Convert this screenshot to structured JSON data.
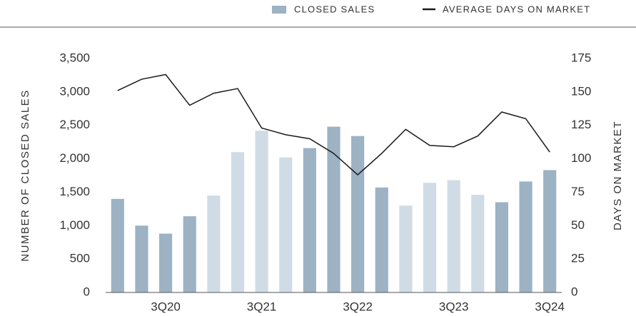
{
  "chart_data": {
    "type": "bar",
    "categories": [
      null,
      null,
      "3Q20",
      null,
      null,
      null,
      "3Q21",
      null,
      null,
      null,
      "3Q22",
      null,
      null,
      null,
      "3Q23",
      null,
      null,
      null,
      "3Q24"
    ],
    "series": [
      {
        "name": "CLOSED SALES",
        "color": "#9db2c3",
        "colors": [
          "#9db2c3",
          "#9db2c3",
          "#9db2c3",
          "#9db2c3",
          "#d0dce5",
          "#d0dce5",
          "#d0dce5",
          "#d0dce5",
          "#9db2c3",
          "#9db2c3",
          "#9db2c3",
          "#9db2c3",
          "#d0dce5",
          "#d0dce5",
          "#d0dce5",
          "#d0dce5",
          "#9db2c3",
          "#9db2c3",
          "#9db2c3"
        ],
        "values": [
          1400,
          1000,
          880,
          1140,
          1450,
          2100,
          2420,
          2020,
          2160,
          2480,
          2340,
          1570,
          1300,
          1640,
          1680,
          1460,
          1350,
          1660,
          1830
        ]
      },
      {
        "name": "AVERAGE DAYS ON MARKET",
        "color": "#1a1a1a",
        "type": "line",
        "axis": "y2",
        "values": [
          151,
          159.5,
          163,
          140,
          149,
          152.5,
          123,
          118,
          115,
          104,
          88,
          104,
          122,
          110,
          109,
          117,
          135,
          130,
          105
        ]
      }
    ],
    "ylabel": "NUMBER OF CLOSED SALES",
    "y2label": "DAYS ON MARKET",
    "ylim": [
      0,
      3500
    ],
    "yticks": [
      0,
      500,
      {
        "value": 1000,
        "label": "1,000"
      },
      {
        "value": 1500,
        "label": "1,500"
      },
      {
        "value": 2000,
        "label": "2,000"
      },
      {
        "value": 2500,
        "label": "2,500"
      },
      {
        "value": 3000,
        "label": "3,000"
      },
      {
        "value": 3500,
        "label": "3,500"
      }
    ],
    "y2lim": [
      0,
      175
    ],
    "y2ticks": [
      0,
      25,
      50,
      75,
      100,
      125,
      150,
      175
    ],
    "grid": false,
    "legend": "top-right"
  }
}
